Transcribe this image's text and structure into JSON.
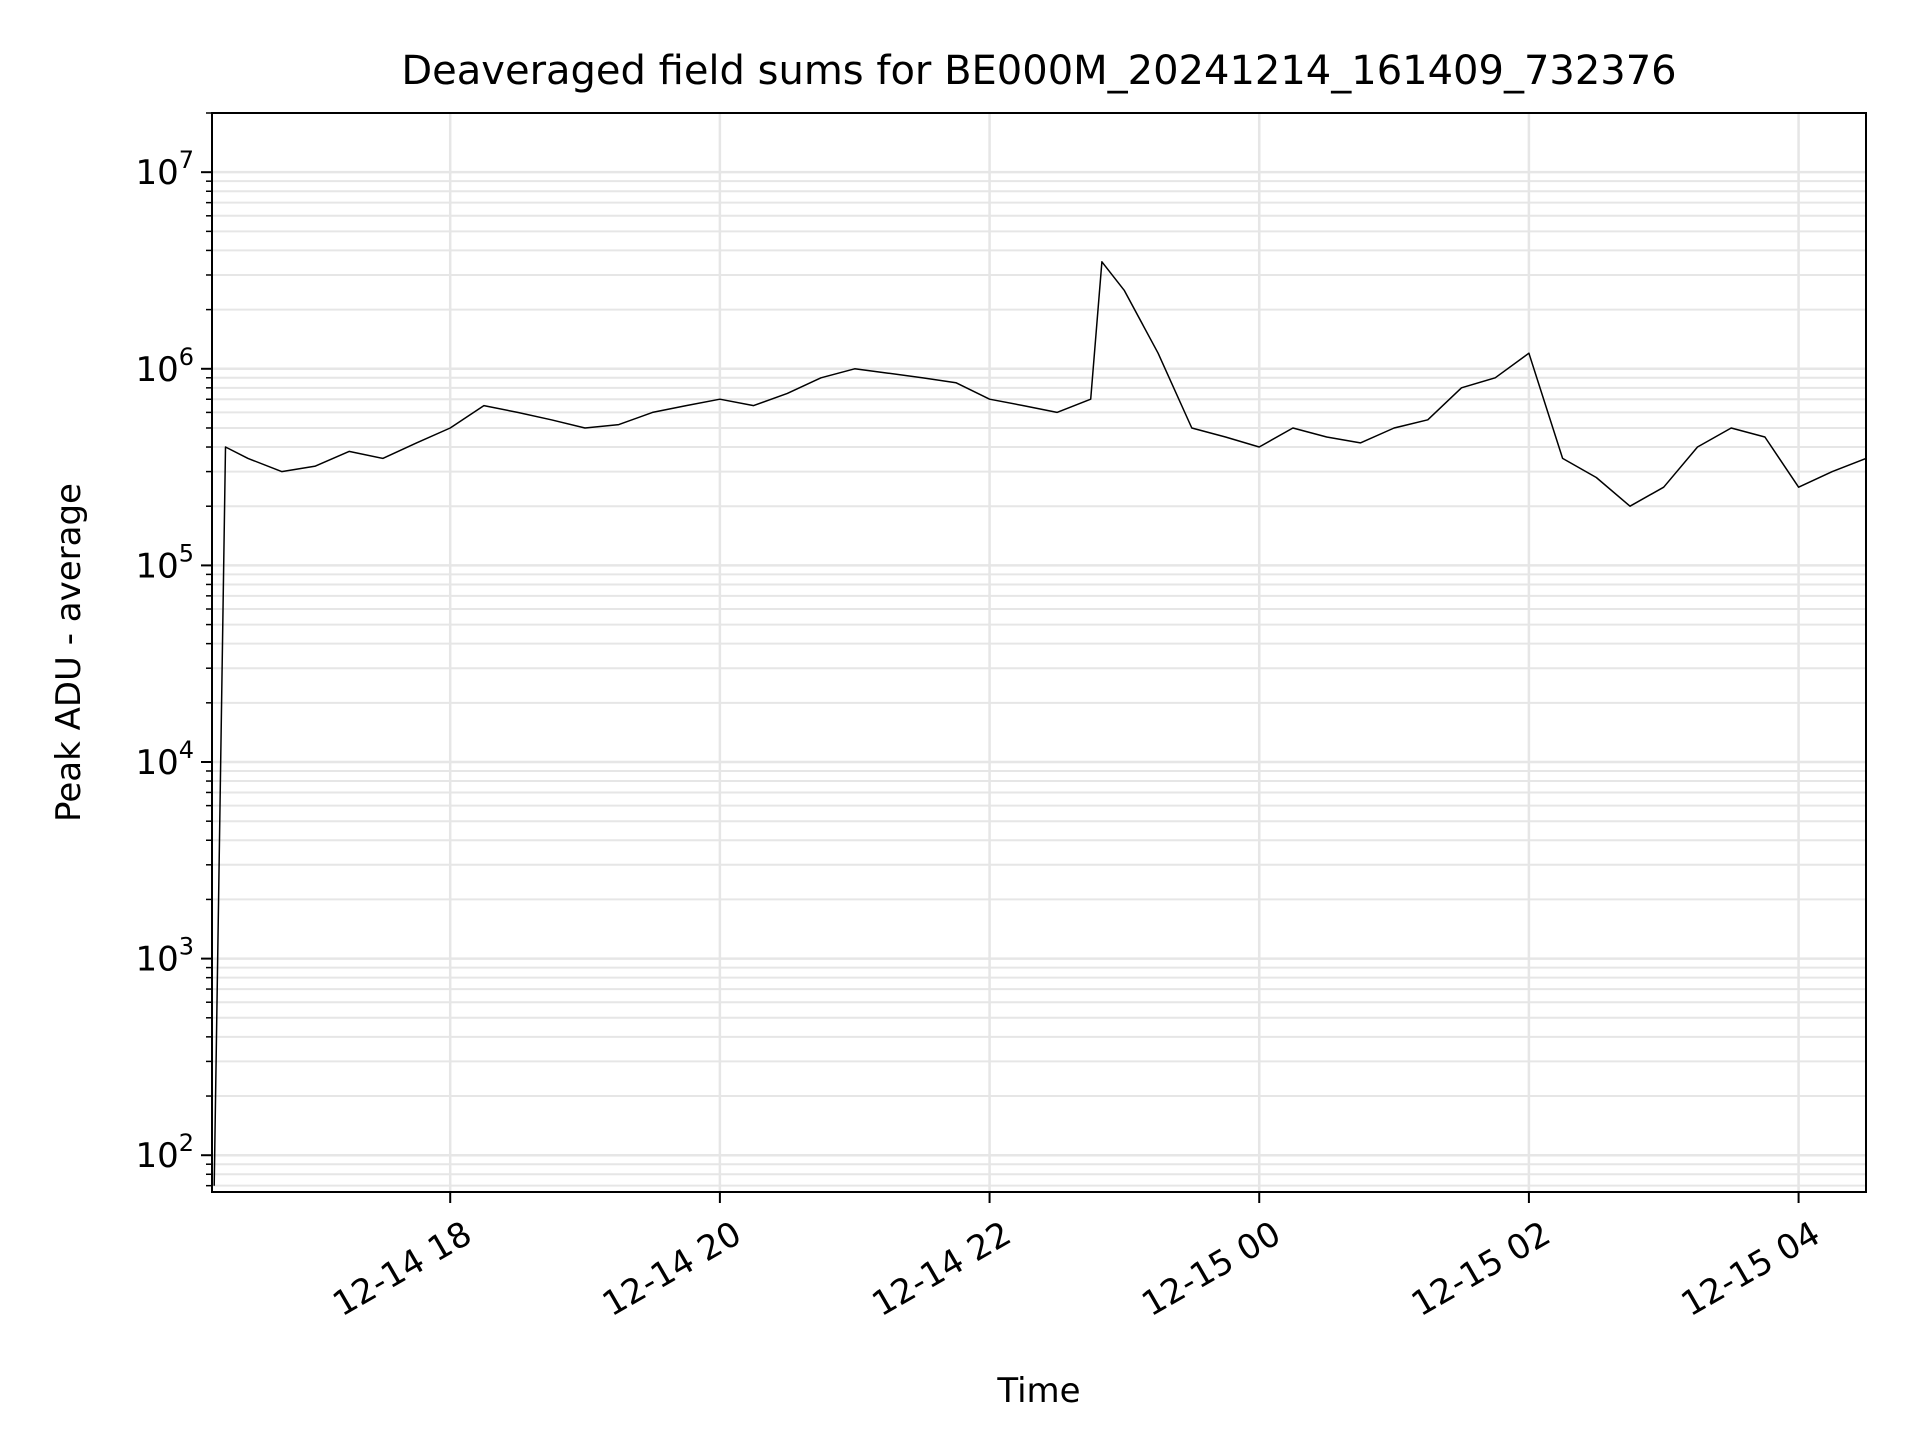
{
  "chart_data": {
    "type": "line",
    "title": "Deaveraged field sums for BE000M_20241214_161409_732376",
    "xlabel": "Time",
    "ylabel": "Peak ADU - average",
    "yscale": "log",
    "ylim": [
      65,
      20000000
    ],
    "xlim": [
      "2024-12-14 16:14",
      "2024-12-15 04:30"
    ],
    "grid": true,
    "legend": "none",
    "x_ticks": [
      {
        "value": "2024-12-14 18:00",
        "label": "12-14 18"
      },
      {
        "value": "2024-12-14 20:00",
        "label": "12-14 20"
      },
      {
        "value": "2024-12-14 22:00",
        "label": "12-14 22"
      },
      {
        "value": "2024-12-15 00:00",
        "label": "12-15 00"
      },
      {
        "value": "2024-12-15 02:00",
        "label": "12-15 02"
      },
      {
        "value": "2024-12-15 04:00",
        "label": "12-15 04"
      }
    ],
    "y_ticks": [
      {
        "value": 100,
        "base": "10",
        "exp": "2"
      },
      {
        "value": 1000,
        "base": "10",
        "exp": "3"
      },
      {
        "value": 10000,
        "base": "10",
        "exp": "4"
      },
      {
        "value": 100000,
        "base": "10",
        "exp": "5"
      },
      {
        "value": 1000000,
        "base": "10",
        "exp": "6"
      },
      {
        "value": 10000000,
        "base": "10",
        "exp": "7"
      }
    ],
    "colors": {
      "line": "#000000",
      "grid": "#e6e6e6",
      "axes": "#000000"
    },
    "series": [
      {
        "x": [
          "2024-12-14 16:15",
          "2024-12-14 16:20",
          "2024-12-14 16:30",
          "2024-12-14 16:45",
          "2024-12-14 17:00",
          "2024-12-14 17:15",
          "2024-12-14 17:30",
          "2024-12-14 17:45",
          "2024-12-14 18:00",
          "2024-12-14 18:15",
          "2024-12-14 18:30",
          "2024-12-14 18:45",
          "2024-12-14 19:00",
          "2024-12-14 19:15",
          "2024-12-14 19:30",
          "2024-12-14 19:45",
          "2024-12-14 20:00",
          "2024-12-14 20:15",
          "2024-12-14 20:30",
          "2024-12-14 20:45",
          "2024-12-14 21:00",
          "2024-12-14 21:15",
          "2024-12-14 21:30",
          "2024-12-14 21:45",
          "2024-12-14 22:00",
          "2024-12-14 22:15",
          "2024-12-14 22:30",
          "2024-12-14 22:45",
          "2024-12-14 22:50",
          "2024-12-14 23:00",
          "2024-12-14 23:15",
          "2024-12-14 23:30",
          "2024-12-14 23:45",
          "2024-12-15 00:00",
          "2024-12-15 00:15",
          "2024-12-15 00:30",
          "2024-12-15 00:45",
          "2024-12-15 01:00",
          "2024-12-15 01:15",
          "2024-12-15 01:30",
          "2024-12-15 01:45",
          "2024-12-15 02:00",
          "2024-12-15 02:15",
          "2024-12-15 02:30",
          "2024-12-15 02:45",
          "2024-12-15 03:00",
          "2024-12-15 03:15",
          "2024-12-15 03:30",
          "2024-12-15 03:45",
          "2024-12-15 04:00",
          "2024-12-15 04:15",
          "2024-12-15 04:30"
        ],
        "y": [
          70,
          400000,
          350000,
          300000,
          320000,
          380000,
          350000,
          420000,
          500000,
          650000,
          600000,
          550000,
          500000,
          520000,
          600000,
          650000,
          700000,
          650000,
          750000,
          900000,
          1000000,
          950000,
          900000,
          850000,
          700000,
          650000,
          600000,
          700000,
          3500000,
          2500000,
          1200000,
          500000,
          450000,
          400000,
          500000,
          450000,
          420000,
          500000,
          550000,
          800000,
          900000,
          1200000,
          350000,
          280000,
          200000,
          250000,
          400000,
          500000,
          450000,
          250000,
          300000,
          350000
        ]
      }
    ]
  }
}
